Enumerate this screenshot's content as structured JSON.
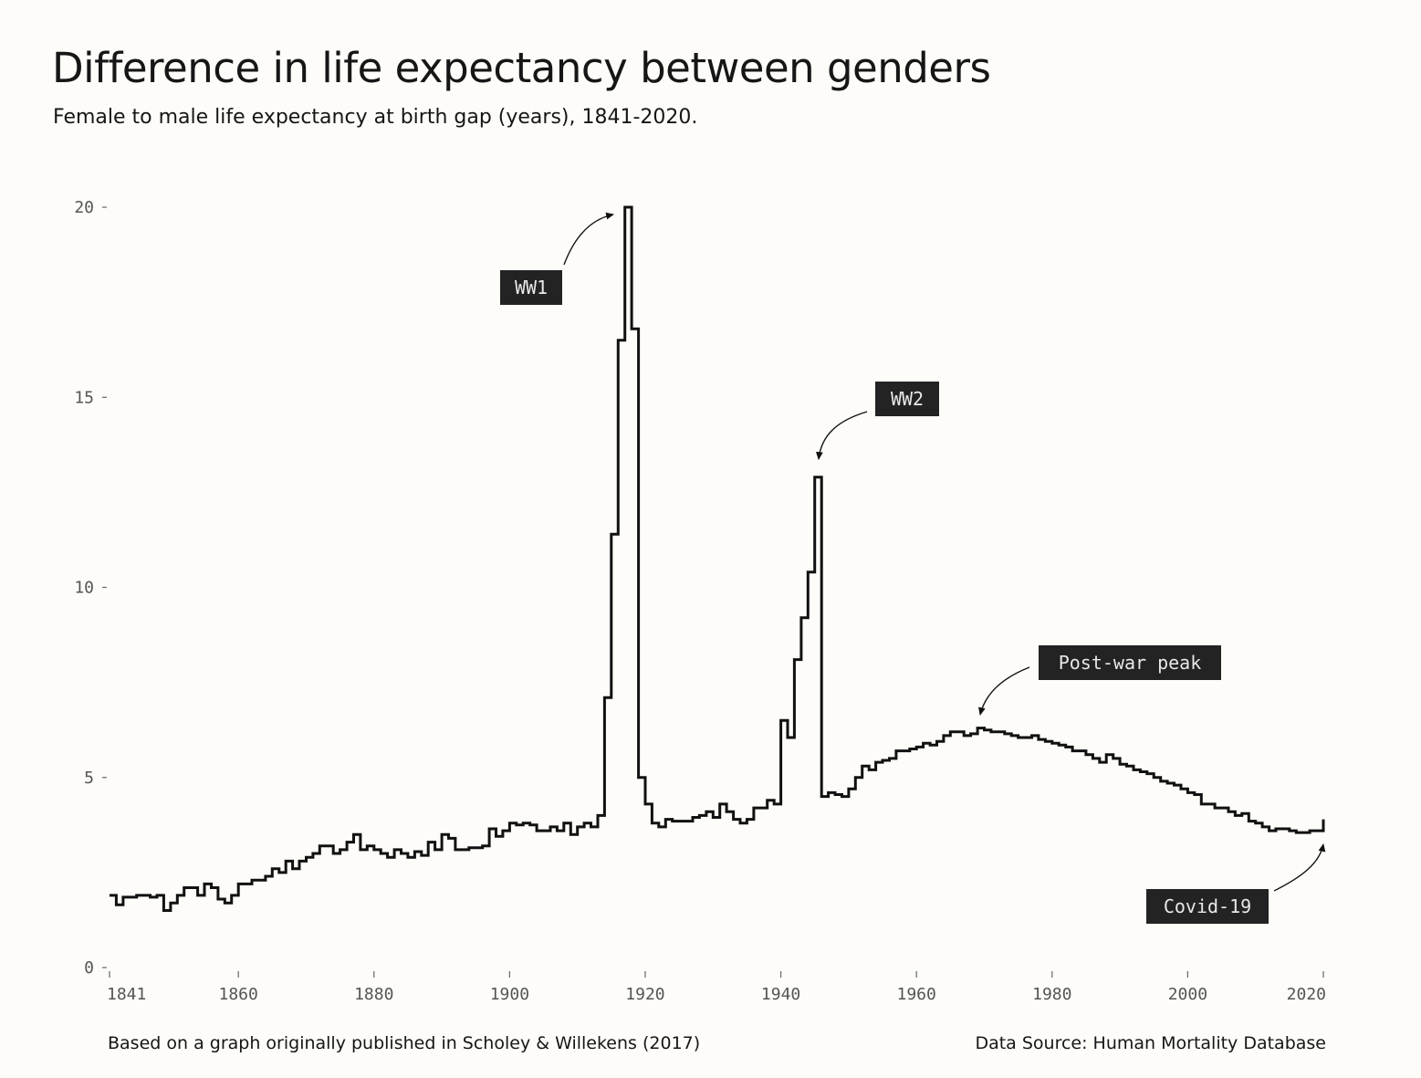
{
  "chart_data": {
    "type": "line",
    "step": true,
    "title": "Difference in life expectancy between genders",
    "subtitle": "Female to male life expectancy at birth gap (years), 1841-2020.",
    "xlabel": "",
    "ylabel": "",
    "xlim": [
      1841,
      2020
    ],
    "ylim": [
      0,
      20
    ],
    "x_ticks": [
      1841,
      1860,
      1880,
      1900,
      1920,
      1940,
      1960,
      1980,
      2000,
      2020
    ],
    "y_ticks": [
      0,
      5,
      10,
      15,
      20
    ],
    "grid": false,
    "x": [
      1841,
      1842,
      1843,
      1844,
      1845,
      1846,
      1847,
      1848,
      1849,
      1850,
      1851,
      1852,
      1853,
      1854,
      1855,
      1856,
      1857,
      1858,
      1859,
      1860,
      1861,
      1862,
      1863,
      1864,
      1865,
      1866,
      1867,
      1868,
      1869,
      1870,
      1871,
      1872,
      1873,
      1874,
      1875,
      1876,
      1877,
      1878,
      1879,
      1880,
      1881,
      1882,
      1883,
      1884,
      1885,
      1886,
      1887,
      1888,
      1889,
      1890,
      1891,
      1892,
      1893,
      1894,
      1895,
      1896,
      1897,
      1898,
      1899,
      1900,
      1901,
      1902,
      1903,
      1904,
      1905,
      1906,
      1907,
      1908,
      1909,
      1910,
      1911,
      1912,
      1913,
      1914,
      1915,
      1916,
      1917,
      1918,
      1919,
      1920,
      1921,
      1922,
      1923,
      1924,
      1925,
      1926,
      1927,
      1928,
      1929,
      1930,
      1931,
      1932,
      1933,
      1934,
      1935,
      1936,
      1937,
      1938,
      1939,
      1940,
      1941,
      1942,
      1943,
      1944,
      1945,
      1946,
      1947,
      1948,
      1949,
      1950,
      1951,
      1952,
      1953,
      1954,
      1955,
      1956,
      1957,
      1958,
      1959,
      1960,
      1961,
      1962,
      1963,
      1964,
      1965,
      1966,
      1967,
      1968,
      1969,
      1970,
      1971,
      1972,
      1973,
      1974,
      1975,
      1976,
      1977,
      1978,
      1979,
      1980,
      1981,
      1982,
      1983,
      1984,
      1985,
      1986,
      1987,
      1988,
      1989,
      1990,
      1991,
      1992,
      1993,
      1994,
      1995,
      1996,
      1997,
      1998,
      1999,
      2000,
      2001,
      2002,
      2003,
      2004,
      2005,
      2006,
      2007,
      2008,
      2009,
      2010,
      2011,
      2012,
      2013,
      2014,
      2015,
      2016,
      2017,
      2018,
      2019,
      2020
    ],
    "series": [
      {
        "values": [
          1.9,
          1.65,
          1.85,
          1.85,
          1.9,
          1.9,
          1.85,
          1.9,
          1.5,
          1.7,
          1.9,
          2.1,
          2.1,
          1.9,
          2.2,
          2.1,
          1.8,
          1.7,
          1.9,
          2.2,
          2.2,
          2.3,
          2.3,
          2.4,
          2.6,
          2.5,
          2.8,
          2.6,
          2.8,
          2.9,
          3.0,
          3.2,
          3.2,
          3.0,
          3.1,
          3.3,
          3.5,
          3.1,
          3.2,
          3.1,
          3.0,
          2.9,
          3.1,
          3.0,
          2.9,
          3.05,
          2.95,
          3.3,
          3.1,
          3.5,
          3.4,
          3.1,
          3.1,
          3.15,
          3.15,
          3.2,
          3.65,
          3.45,
          3.6,
          3.8,
          3.75,
          3.8,
          3.75,
          3.6,
          3.6,
          3.7,
          3.6,
          3.8,
          3.5,
          3.7,
          3.8,
          3.7,
          4.0,
          7.1,
          11.4,
          16.5,
          20.0,
          16.8,
          5.0,
          4.3,
          3.8,
          3.7,
          3.9,
          3.85,
          3.85,
          3.85,
          3.95,
          4.0,
          4.1,
          3.95,
          4.3,
          4.1,
          3.9,
          3.8,
          3.9,
          4.2,
          4.2,
          4.4,
          4.3,
          6.5,
          6.05,
          8.1,
          9.2,
          10.4,
          12.9,
          4.5,
          4.6,
          4.55,
          4.5,
          4.7,
          5.0,
          5.3,
          5.2,
          5.4,
          5.45,
          5.5,
          5.7,
          5.7,
          5.75,
          5.8,
          5.9,
          5.85,
          5.95,
          6.1,
          6.2,
          6.2,
          6.1,
          6.15,
          6.3,
          6.25,
          6.2,
          6.2,
          6.15,
          6.1,
          6.05,
          6.05,
          6.1,
          6.0,
          5.95,
          5.9,
          5.85,
          5.8,
          5.7,
          5.7,
          5.6,
          5.5,
          5.4,
          5.6,
          5.5,
          5.35,
          5.3,
          5.2,
          5.15,
          5.1,
          5.0,
          4.9,
          4.85,
          4.8,
          4.7,
          4.6,
          4.55,
          4.3,
          4.3,
          4.2,
          4.2,
          4.1,
          4.0,
          4.05,
          3.85,
          3.8,
          3.7,
          3.6,
          3.65,
          3.65,
          3.6,
          3.55,
          3.55,
          3.6,
          3.6,
          3.9
        ]
      }
    ],
    "annotations": [
      {
        "label": "WW1",
        "target_year": 1917,
        "target_value": 20.0
      },
      {
        "label": "WW2",
        "target_year": 1945,
        "target_value": 12.9
      },
      {
        "label": "Post-war peak",
        "target_year": 1970,
        "target_value": 6.3
      },
      {
        "label": "Covid-19",
        "target_year": 2020,
        "target_value": 3.9
      }
    ]
  },
  "footer": {
    "left": "Based on a graph originally published in Scholey & Willekens (2017)",
    "right": "Data Source: Human Mortality Database"
  }
}
